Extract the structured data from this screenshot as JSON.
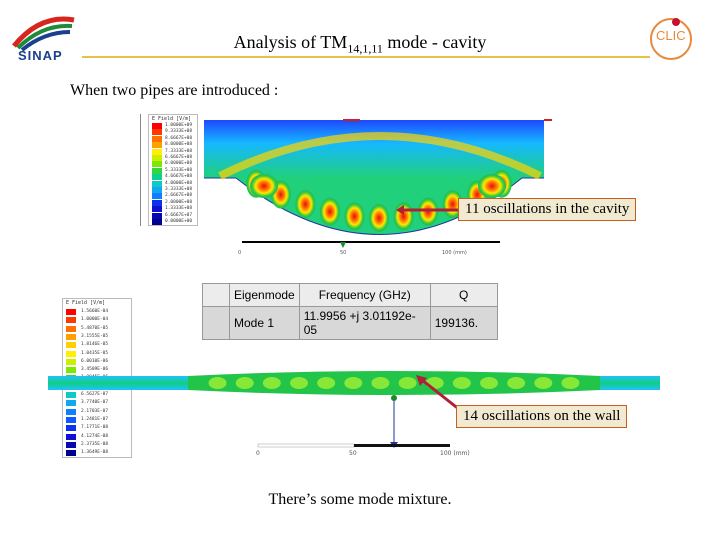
{
  "header": {
    "title_main": "Analysis of TM",
    "title_sub": "14,1,11",
    "title_rest": " mode - cavity",
    "left_logo_text": "SINAP",
    "right_logo_text": "CLIC",
    "rule_color": "#e3c24a"
  },
  "intro_text": "When two pipes are introduced :",
  "callouts": {
    "cavity": "11 oscillations in the cavity",
    "wall": "14 oscillations on the wall"
  },
  "eigen_table": {
    "headers": [
      "Eigenmode",
      "Frequency (GHz)",
      "Q"
    ],
    "row": [
      "Mode 1",
      "11.9956 +j 3.01192e-05",
      "199136."
    ]
  },
  "legend_top": {
    "header": "E Field [V/m]",
    "ticks": [
      "1.0000E+09",
      "9.3333E+08",
      "8.6667E+08",
      "8.0000E+08",
      "7.3333E+08",
      "6.6667E+08",
      "6.0000E+08",
      "5.3333E+08",
      "4.6667E+08",
      "4.0000E+08",
      "3.3333E+08",
      "2.6667E+08",
      "2.0000E+08",
      "1.3333E+08",
      "6.6667E+07",
      "0.0000E+00"
    ]
  },
  "legend_bottom": {
    "header": "E Field [V/m]",
    "ticks": [
      "1.5660E-04",
      "1.0000E-04",
      "5.4870E-05",
      "3.1555E-05",
      "1.8146E-05",
      "1.0435E-05",
      "6.0010E-06",
      "3.4509E-06",
      "1.9845E-06",
      "1.1412E-06",
      "6.5627E-07",
      "3.7740E-07",
      "2.1703E-07",
      "1.2481E-07",
      "7.1771E-08",
      "4.1274E-08",
      "2.3735E-08",
      "1.3649E-08"
    ]
  },
  "scale_bottom": {
    "labels": [
      "0",
      "50",
      "100 (mm)"
    ]
  },
  "scale_top": {
    "labels": [
      "0",
      "50",
      "100 (mm)"
    ]
  },
  "closing_text": "There’s some mode mixture."
}
